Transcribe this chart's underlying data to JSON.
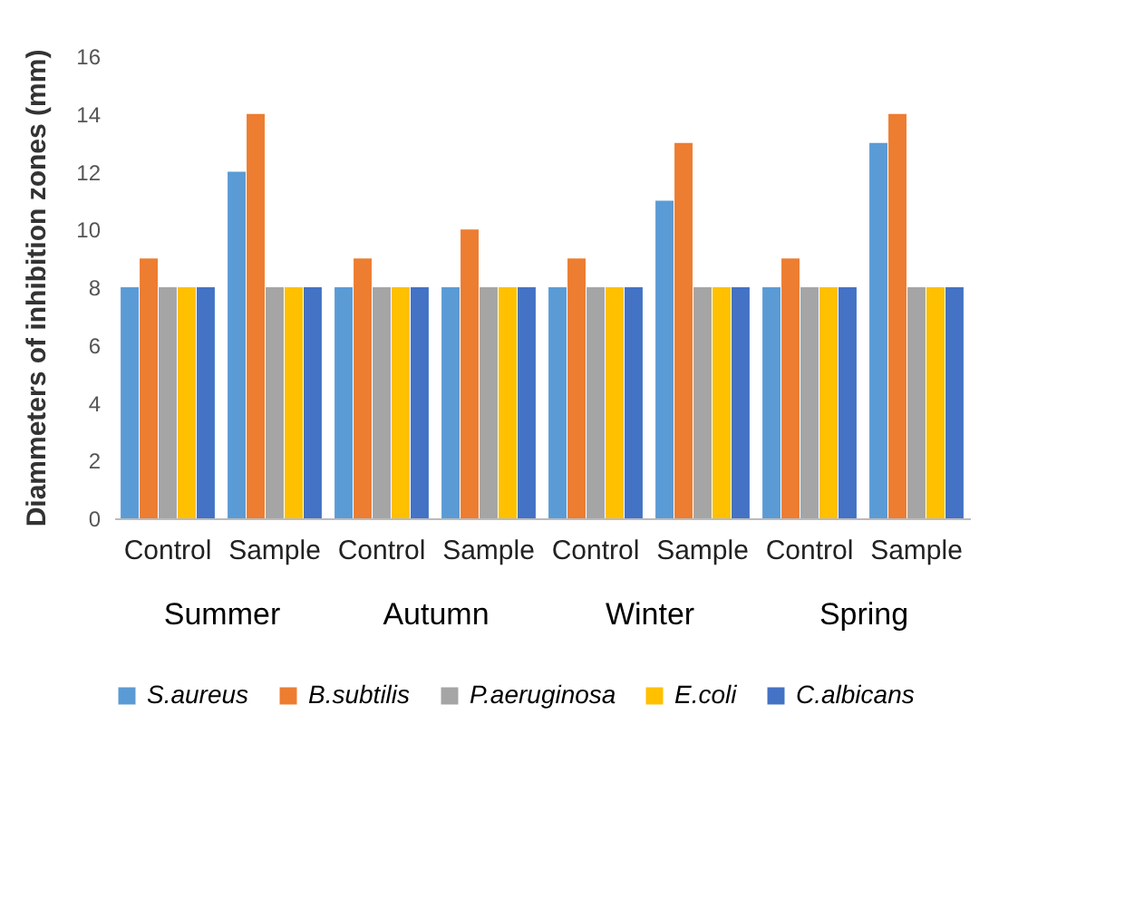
{
  "chart_data": [
    {
      "type": "bar",
      "xlabel": "Summer",
      "ylabel": "Diammeters of inhibition zones (mm)",
      "categories": [
        "Control",
        "Sample"
      ],
      "ylim": [
        0,
        16
      ],
      "yticks": [
        0,
        2,
        4,
        6,
        8,
        10,
        12,
        14,
        16
      ],
      "legend": "bottom",
      "series": [
        {
          "name": "S.aureus",
          "color": "#5b9bd5",
          "values": [
            8,
            12
          ]
        },
        {
          "name": "B.subtilis",
          "color": "#ed7d31",
          "values": [
            9,
            14
          ]
        },
        {
          "name": "P.aeruginosa",
          "color": "#a5a5a5",
          "values": [
            8,
            8
          ]
        },
        {
          "name": "E.coli",
          "color": "#ffc000",
          "values": [
            8,
            8
          ]
        },
        {
          "name": "C.albicans",
          "color": "#4472c4",
          "values": [
            8,
            8
          ]
        }
      ]
    },
    {
      "type": "bar",
      "xlabel": "Autumn",
      "categories": [
        "Control",
        "Sample"
      ],
      "ylim": [
        0,
        16
      ],
      "yticks": [
        0,
        2,
        4,
        6,
        8,
        10,
        12,
        14,
        16
      ],
      "tick_labels": "x",
      "series": [
        {
          "color": "#5b9bd5",
          "values": [
            8,
            8
          ]
        },
        {
          "color": "#ed7d31",
          "values": [
            9,
            10
          ]
        },
        {
          "color": "#a5a5a5",
          "values": [
            8,
            8
          ]
        },
        {
          "color": "#ffc000",
          "values": [
            8,
            8
          ]
        },
        {
          "color": "#4472c4",
          "values": [
            8,
            8
          ]
        }
      ]
    },
    {
      "type": "bar",
      "xlabel": "Winter",
      "categories": [
        "Control",
        "Sample"
      ],
      "ylim": [
        0,
        16
      ],
      "yticks": [
        0,
        2,
        4,
        6,
        8,
        10,
        12,
        14,
        16
      ],
      "tick_labels": "x",
      "series": [
        {
          "color": "#5b9bd5",
          "values": [
            8,
            11
          ]
        },
        {
          "color": "#ed7d31",
          "values": [
            9,
            13
          ]
        },
        {
          "color": "#a5a5a5",
          "values": [
            8,
            8
          ]
        },
        {
          "color": "#ffc000",
          "values": [
            8,
            8
          ]
        },
        {
          "color": "#4472c4",
          "values": [
            8,
            8
          ]
        }
      ]
    },
    {
      "type": "bar",
      "xlabel": "Spring",
      "categories": [
        "Control",
        "Sample"
      ],
      "ylim": [
        0,
        16
      ],
      "yticks": [
        0,
        2,
        4,
        6,
        8,
        10,
        12,
        14,
        16
      ],
      "tick_labels": "x",
      "series": [
        {
          "color": "#5b9bd5",
          "values": [
            8,
            13
          ]
        },
        {
          "color": "#ed7d31",
          "values": [
            9,
            14
          ]
        },
        {
          "color": "#a5a5a5",
          "values": [
            8,
            8
          ]
        },
        {
          "color": "#ffc000",
          "values": [
            8,
            8
          ]
        },
        {
          "color": "#4472c4",
          "values": [
            8,
            8
          ]
        }
      ]
    }
  ]
}
